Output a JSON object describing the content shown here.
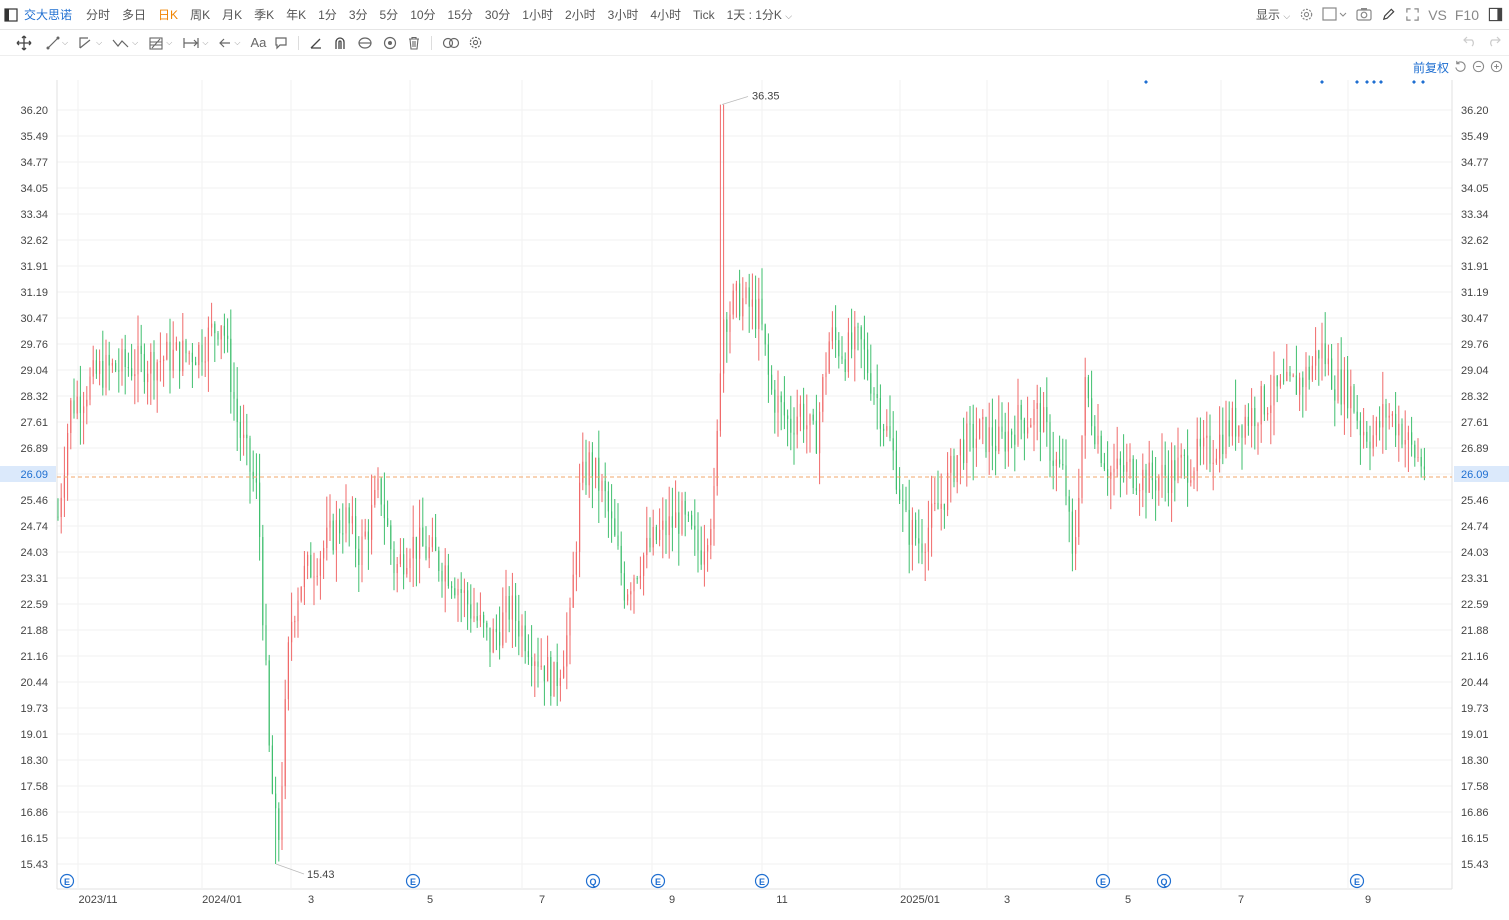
{
  "header": {
    "stock_name": "交大思诺",
    "periods": [
      "分时",
      "多日",
      "日K",
      "周K",
      "月K",
      "季K",
      "年K",
      "1分",
      "3分",
      "5分",
      "10分",
      "15分",
      "30分",
      "1小时",
      "2小时",
      "3小时",
      "4小时",
      "Tick"
    ],
    "active_period": "日K",
    "combo_label": "1天 : 1分K",
    "display_label": "显示",
    "vs_label": "VS",
    "f10_label": "F10"
  },
  "chart": {
    "adjust_label": "前复权",
    "price_levels": [
      "36.20",
      "35.49",
      "34.77",
      "34.05",
      "33.34",
      "32.62",
      "31.91",
      "31.19",
      "30.47",
      "29.76",
      "29.04",
      "28.32",
      "27.61",
      "26.89",
      "26.09",
      "25.46",
      "24.74",
      "24.03",
      "23.31",
      "22.59",
      "21.88",
      "21.16",
      "20.44",
      "19.73",
      "19.01",
      "18.30",
      "17.58",
      "16.86",
      "16.15",
      "15.43"
    ],
    "current_price": "26.09",
    "high_marker": "36.35",
    "low_marker": "15.43",
    "x_labels": [
      "2023/11",
      "2024/01",
      "3",
      "5",
      "7",
      "9",
      "11",
      "2025/01",
      "3",
      "5",
      "7",
      "9"
    ],
    "event_markers": [
      "E",
      "E",
      "Q",
      "E",
      "E",
      "E",
      "Q",
      "E"
    ],
    "colors": {
      "up": "#f06a6a",
      "down": "#3fbf6e",
      "accent": "#1f6fd1",
      "current_line": "#f2a76b",
      "grid": "#f2f2f2"
    }
  }
}
